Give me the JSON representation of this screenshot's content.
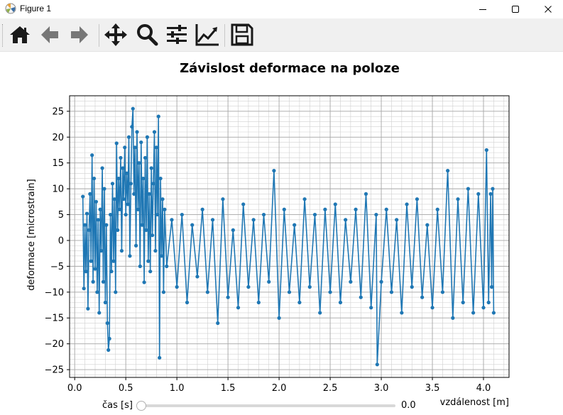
{
  "window": {
    "title": "Figure 1",
    "minimize_icon": "minimize-icon",
    "maximize_icon": "maximize-icon",
    "close_icon": "close-icon"
  },
  "toolbar": {
    "buttons": [
      {
        "name": "home-button",
        "icon": "home-icon"
      },
      {
        "name": "back-button",
        "icon": "arrow-left-icon"
      },
      {
        "name": "forward-button",
        "icon": "arrow-right-icon"
      },
      {
        "name": "pan-button",
        "icon": "move-icon"
      },
      {
        "name": "zoom-button",
        "icon": "magnifier-icon"
      },
      {
        "name": "subplots-button",
        "icon": "sliders-icon"
      },
      {
        "name": "axes-button",
        "icon": "chart-line-icon"
      },
      {
        "name": "save-button",
        "icon": "floppy-disk-icon"
      }
    ],
    "icon_color": "#1a1a1a",
    "disabled_icon_color": "#777777"
  },
  "slider": {
    "label": "čas [s]",
    "value": "0.0",
    "fraction": 0.0
  },
  "chart_data": {
    "type": "line",
    "title": "Závislost deformace na poloze",
    "xlabel": "vzdálenost [m]",
    "ylabel": "deformace [microstrain]",
    "xlim": [
      -0.05,
      4.25
    ],
    "ylim": [
      -26.5,
      28
    ],
    "xticks": [
      0.0,
      0.5,
      1.0,
      1.5,
      2.0,
      2.5,
      3.0,
      3.5,
      4.0
    ],
    "xtick_labels": [
      "0.0",
      "0.5",
      "1.0",
      "1.5",
      "2.0",
      "2.5",
      "3.0",
      "3.5",
      "4.0"
    ],
    "yticks": [
      -25,
      -20,
      -15,
      -10,
      -5,
      0,
      5,
      10,
      15,
      20,
      25
    ],
    "ytick_labels": [
      "−25",
      "−20",
      "−15",
      "−10",
      "−5",
      "0",
      "5",
      "10",
      "15",
      "20",
      "25"
    ],
    "grid": true,
    "minor_grid": true,
    "marker": "circle",
    "series_color": "#1f77b4",
    "series": [
      {
        "x": [
          0.08,
          0.09,
          0.1,
          0.11,
          0.12,
          0.13,
          0.14,
          0.15,
          0.16,
          0.17,
          0.18,
          0.19,
          0.2,
          0.21,
          0.22,
          0.23,
          0.24,
          0.25,
          0.26,
          0.27,
          0.28,
          0.29,
          0.3,
          0.31,
          0.32,
          0.33,
          0.34,
          0.35,
          0.36,
          0.37,
          0.38,
          0.39,
          0.4,
          0.41,
          0.42,
          0.43,
          0.44,
          0.45,
          0.46,
          0.47,
          0.48,
          0.49,
          0.5,
          0.51,
          0.52,
          0.53,
          0.54,
          0.55,
          0.56,
          0.57,
          0.58,
          0.59,
          0.6,
          0.61,
          0.62,
          0.63,
          0.64,
          0.65,
          0.66,
          0.67,
          0.68,
          0.69,
          0.7,
          0.71,
          0.72,
          0.73,
          0.74,
          0.75,
          0.76,
          0.77,
          0.78,
          0.79,
          0.8,
          0.81,
          0.82,
          0.83,
          0.84,
          0.85,
          0.86,
          0.87,
          0.88,
          0.9,
          0.95,
          1.0,
          1.05,
          1.1,
          1.15,
          1.2,
          1.25,
          1.3,
          1.35,
          1.4,
          1.45,
          1.5,
          1.55,
          1.6,
          1.65,
          1.7,
          1.75,
          1.8,
          1.85,
          1.9,
          1.95,
          2.0,
          2.05,
          2.1,
          2.15,
          2.2,
          2.25,
          2.3,
          2.35,
          2.4,
          2.45,
          2.5,
          2.55,
          2.6,
          2.65,
          2.7,
          2.75,
          2.8,
          2.85,
          2.9,
          2.95,
          2.96,
          3.0,
          3.05,
          3.1,
          3.15,
          3.2,
          3.25,
          3.3,
          3.35,
          3.4,
          3.45,
          3.5,
          3.55,
          3.6,
          3.65,
          3.7,
          3.75,
          3.8,
          3.85,
          3.9,
          3.95,
          4.0,
          4.03,
          4.05,
          4.07,
          4.08,
          4.09,
          4.1
        ],
        "y": [
          8.5,
          -9.3,
          3.0,
          -6.0,
          5.2,
          -13.2,
          2.0,
          9.0,
          -4.0,
          16.5,
          -8.0,
          12.0,
          -5.5,
          7.5,
          -10.0,
          4.0,
          -14.0,
          6.0,
          -2.0,
          14.0,
          -8.0,
          10.0,
          -12.0,
          3.0,
          -16.0,
          -21.2,
          -19.0,
          5.0,
          -6.0,
          11.0,
          -4.0,
          8.0,
          -10.0,
          18.8,
          2.0,
          12.0,
          6.0,
          16.0,
          -2.0,
          14.0,
          8.0,
          18.0,
          5.0,
          13.0,
          7.0,
          20.0,
          -3.0,
          11.0,
          22.0,
          25.5,
          9.0,
          18.0,
          -1.0,
          21.0,
          6.0,
          15.0,
          -5.0,
          19.0,
          3.0,
          12.0,
          -8.1,
          16.0,
          2.0,
          20.0,
          -4.0,
          9.0,
          -6.0,
          14.0,
          1.0,
          11.0,
          21.0,
          -2.0,
          18.0,
          5.0,
          24.0,
          -22.7,
          12.0,
          -3.0,
          8.0,
          -10.0,
          6.0,
          -5.0,
          4.0,
          -9.0,
          5.0,
          -12.0,
          3.0,
          -7.0,
          6.0,
          -10.0,
          4.0,
          -16.0,
          8.0,
          -11.0,
          2.0,
          -13.0,
          7.0,
          -9.0,
          4.0,
          -12.0,
          5.0,
          -8.0,
          13.5,
          -15.0,
          6.0,
          -10.0,
          3.0,
          -12.0,
          8.0,
          -9.0,
          5.0,
          -14.0,
          6.0,
          -10.0,
          7.0,
          -12.0,
          4.0,
          -8.0,
          6.0,
          -11.0,
          9.0,
          -13.0,
          5.0,
          -24.0,
          -8.0,
          6.0,
          -10.0,
          4.0,
          -14.0,
          7.0,
          -9.0,
          8.0,
          -11.0,
          3.0,
          -13.0,
          6.0,
          -10.0,
          13.5,
          -15.0,
          8.0,
          -12.0,
          10.0,
          -14.0,
          9.0,
          -13.0,
          17.5,
          -12.0,
          9.0,
          -9.0,
          10.0,
          -14.0
        ]
      }
    ]
  }
}
